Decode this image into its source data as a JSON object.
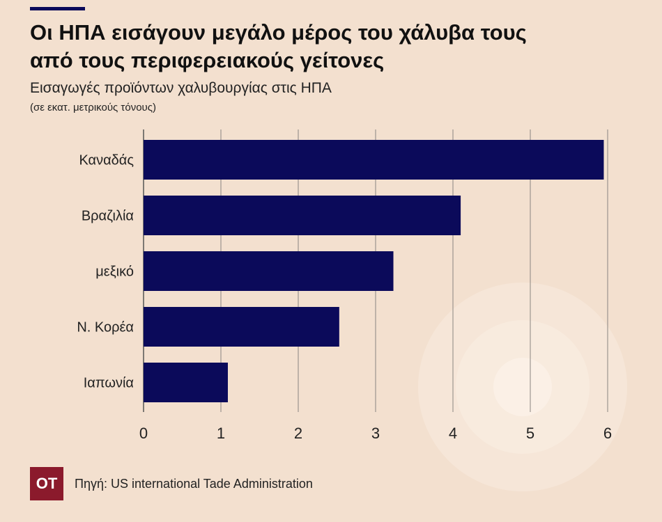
{
  "header": {
    "title_line1": "Οι ΗΠΑ εισάγουν μεγάλο μέρος του χάλυβα τους",
    "title_line2": "από τους περιφερειακούς γείτονες",
    "subtitle": "Εισαγωγές προϊόντων χαλυβουργίας στις ΗΠΑ",
    "units": "(σε  εκατ. μετρικούς τόνους)"
  },
  "footer": {
    "logo_text": "OT",
    "source": "Πηγή:  US international Tade Administration"
  },
  "colors": {
    "background": "#f3e0cf",
    "bar": "#0b0a5a",
    "logo": "#8b1a2c"
  },
  "chart_data": {
    "type": "bar",
    "orientation": "horizontal",
    "title": "Οι ΗΠΑ εισάγουν μεγάλο μέρος του χάλυβα τους από τους περιφερειακούς γείτονες",
    "subtitle": "Εισαγωγές προϊόντων χαλυβουργίας στις ΗΠΑ",
    "xlabel": "(σε  εκατ. μετρικούς τόνους)",
    "ylabel": "",
    "categories": [
      "Καναδάς",
      "Βραζιλία",
      "μεξικό",
      "Ν. Κορέα",
      "Ιαπωνία"
    ],
    "values": [
      5.95,
      4.1,
      3.23,
      2.53,
      1.09
    ],
    "xlim": [
      0,
      6
    ],
    "xticks": [
      "0",
      "1",
      "2",
      "3",
      "4",
      "5",
      "6"
    ],
    "grid": true
  }
}
